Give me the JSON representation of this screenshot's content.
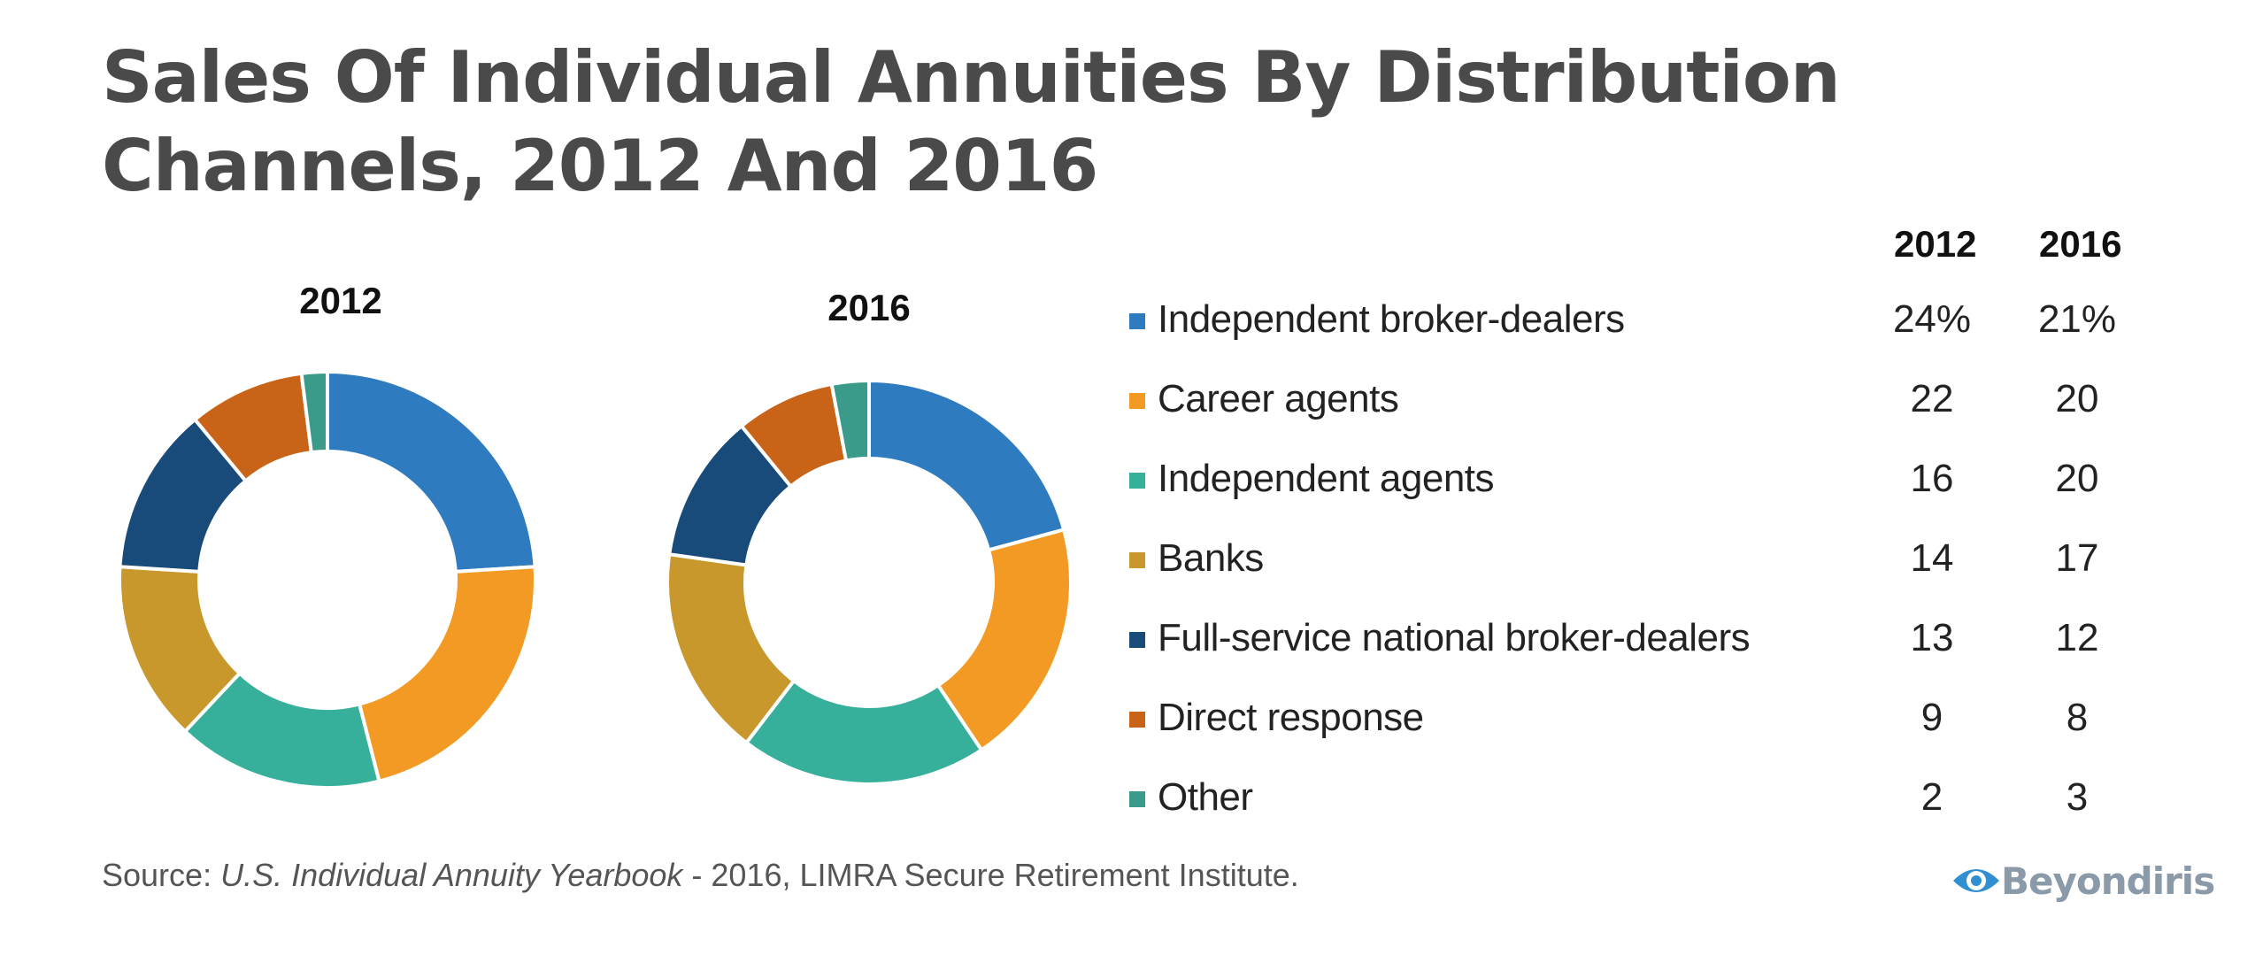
{
  "title": "Sales Of Individual Annuities By Distribution Channels, 2012 And 2016",
  "source": {
    "prefix": "Source: ",
    "italic": "U.S. Individual Annuity Yearbook",
    "suffix": " - 2016, LIMRA Secure Retirement Institute."
  },
  "logo": {
    "text": "Beyondiris",
    "icon": "eye-icon",
    "color": "#2f8fd0"
  },
  "table": {
    "col_2012": "2012",
    "col_2016": "2016",
    "rows": [
      {
        "label": "Independent broker-dealers",
        "v2012": "24%",
        "v2016": "21%",
        "color": "#2e7bc0"
      },
      {
        "label": "Career agents",
        "v2012": "22",
        "v2016": "20",
        "color": "#f29a24"
      },
      {
        "label": "Independent agents",
        "v2012": "16",
        "v2016": "20",
        "color": "#37b09b"
      },
      {
        "label": "Banks",
        "v2012": "14",
        "v2016": "17",
        "color": "#c9982c"
      },
      {
        "label": "Full-service national broker-dealers",
        "v2012": "13",
        "v2016": "12",
        "color": "#184b7a"
      },
      {
        "label": "Direct response",
        "v2012": "9",
        "v2016": "8",
        "color": "#c96317"
      },
      {
        "label": "Other",
        "v2012": "2",
        "v2016": "3",
        "color": "#3a9b8a"
      }
    ]
  },
  "chart_data": [
    {
      "type": "pie",
      "title": "2012",
      "donut": true,
      "categories": [
        "Independent broker-dealers",
        "Career agents",
        "Independent agents",
        "Banks",
        "Full-service national broker-dealers",
        "Direct response",
        "Other"
      ],
      "values": [
        24,
        22,
        16,
        14,
        13,
        9,
        2
      ],
      "colors": [
        "#2e7bc0",
        "#f29a24",
        "#37b09b",
        "#c9982c",
        "#184b7a",
        "#c96317",
        "#3a9b8a"
      ]
    },
    {
      "type": "pie",
      "title": "2016",
      "donut": true,
      "categories": [
        "Independent broker-dealers",
        "Career agents",
        "Independent agents",
        "Banks",
        "Full-service national broker-dealers",
        "Direct response",
        "Other"
      ],
      "values": [
        21,
        20,
        20,
        17,
        12,
        8,
        3
      ],
      "colors": [
        "#2e7bc0",
        "#f29a24",
        "#37b09b",
        "#c9982c",
        "#184b7a",
        "#c96317",
        "#3a9b8a"
      ]
    }
  ]
}
